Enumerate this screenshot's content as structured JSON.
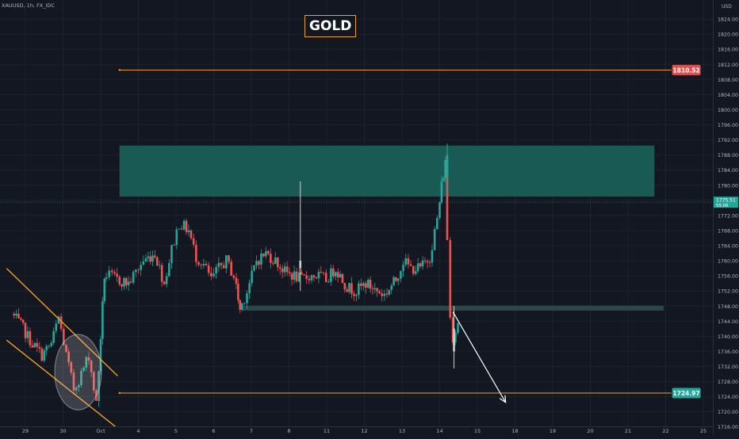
{
  "header": {
    "symbol": "XAUUSD, 1h, FX_IDC",
    "title": "GOLD",
    "currency": "USD"
  },
  "colors": {
    "background": "#131722",
    "grid": "#1e222d",
    "axis_text": "#b2b5be",
    "bull": "#26a69a",
    "bear": "#ef5350",
    "level_line": "#f0a020",
    "zone": "#1a5e58",
    "support_zone": "#2a4a4c",
    "resistance_badge": "#e05050",
    "support_badge": "#26a69a",
    "price_badge": "#26a69a",
    "wedge": "#f0a020",
    "arrow": "#ffffff"
  },
  "chart_data": {
    "type": "candlestick",
    "title": "GOLD",
    "price_axis": {
      "ticks": [
        1716,
        1720,
        1724,
        1728,
        1732,
        1736,
        1740,
        1744,
        1748,
        1752,
        1756,
        1760,
        1764,
        1768,
        1772,
        1776,
        1780,
        1784,
        1788,
        1792,
        1796,
        1800,
        1804,
        1808,
        1812,
        1816,
        1820,
        1824
      ],
      "ylim": [
        1715,
        1827
      ],
      "decimals": 2
    },
    "time_axis": {
      "ticks": [
        "29",
        "30",
        "Oct",
        "4",
        "5",
        "6",
        "7",
        "8",
        "11",
        "12",
        "13",
        "14",
        "15",
        "18",
        "19",
        "20",
        "21",
        "22",
        "25"
      ],
      "xlim": [
        0,
        19
      ]
    },
    "last_price": "1775.51",
    "countdown": "55:06",
    "levels": [
      {
        "name": "resistance-level",
        "price": 1810.52,
        "label": "1810.52",
        "from_x": 2.5,
        "to_x": 17.15
      },
      {
        "name": "support-level",
        "price": 1724.97,
        "label": "1724.97",
        "from_x": 2.5,
        "to_x": 17.15
      }
    ],
    "zones": [
      {
        "name": "supply-zone",
        "from_x": 2.5,
        "to_x": 16.7,
        "low": 1777.0,
        "high": 1790.5
      },
      {
        "name": "demand-zone",
        "from_x": 5.75,
        "to_x": 16.95,
        "low": 1746.8,
        "high": 1748.1
      }
    ],
    "wedge_lines": [
      {
        "name": "wedge-upper-line",
        "points": [
          [
            -0.5,
            1758
          ],
          [
            2.45,
            1729.5
          ]
        ]
      },
      {
        "name": "wedge-lower-line",
        "points": [
          [
            -0.5,
            1739
          ],
          [
            2.4,
            1716
          ]
        ]
      }
    ],
    "circle": {
      "x": 1.4,
      "price": 1730.5,
      "radius_x": 0.62,
      "radius_price": 10
    },
    "arrow": {
      "from": [
        11.35,
        1746.5
      ],
      "to": [
        12.75,
        1722.5
      ]
    },
    "candle_anchors": [
      [
        -0.3,
        1746
      ],
      [
        0.0,
        1742
      ],
      [
        0.25,
        1738
      ],
      [
        0.5,
        1735
      ],
      [
        0.75,
        1738
      ],
      [
        0.95,
        1745
      ],
      [
        1.15,
        1735
      ],
      [
        1.35,
        1726
      ],
      [
        1.55,
        1730
      ],
      [
        1.75,
        1735
      ],
      [
        1.95,
        1722
      ],
      [
        2.05,
        1740
      ],
      [
        2.15,
        1756
      ],
      [
        2.3,
        1756
      ],
      [
        2.5,
        1755
      ],
      [
        2.8,
        1754
      ],
      [
        3.0,
        1757
      ],
      [
        3.2,
        1760
      ],
      [
        3.5,
        1762
      ],
      [
        3.75,
        1754
      ],
      [
        3.95,
        1763
      ],
      [
        4.15,
        1770
      ],
      [
        4.4,
        1768
      ],
      [
        4.6,
        1761
      ],
      [
        4.8,
        1759
      ],
      [
        5.0,
        1755
      ],
      [
        5.2,
        1758
      ],
      [
        5.4,
        1760
      ],
      [
        5.6,
        1756
      ],
      [
        5.75,
        1747
      ],
      [
        5.95,
        1752
      ],
      [
        6.2,
        1760
      ],
      [
        6.45,
        1762
      ],
      [
        6.7,
        1760
      ],
      [
        6.95,
        1757
      ],
      [
        7.2,
        1756
      ],
      [
        7.4,
        1755
      ],
      [
        7.6,
        1756
      ],
      [
        7.85,
        1756
      ],
      [
        8.05,
        1755
      ],
      [
        8.3,
        1758
      ],
      [
        8.6,
        1753
      ],
      [
        8.85,
        1752
      ],
      [
        9.1,
        1754
      ],
      [
        9.4,
        1752
      ],
      [
        9.6,
        1751
      ],
      [
        9.9,
        1755
      ],
      [
        10.1,
        1760
      ],
      [
        10.3,
        1758
      ],
      [
        10.55,
        1758
      ],
      [
        10.8,
        1761
      ],
      [
        11.0,
        1771
      ],
      [
        11.1,
        1780
      ],
      [
        11.2,
        1786
      ],
      [
        11.28,
        1766
      ],
      [
        11.35,
        1745
      ],
      [
        11.42,
        1740
      ],
      [
        11.55,
        1744
      ]
    ],
    "special_candles": [
      {
        "x": 7.3,
        "open": 1760,
        "close": 1758,
        "high": 1781,
        "low": 1752
      },
      {
        "x": 11.2,
        "open": 1782,
        "close": 1788,
        "high": 1791,
        "low": 1778
      },
      {
        "x": 11.38,
        "open": 1742,
        "close": 1736,
        "high": 1748,
        "low": 1731.5
      }
    ]
  }
}
